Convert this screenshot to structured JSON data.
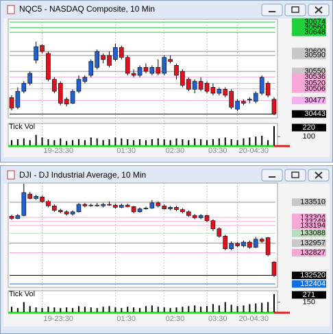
{
  "chart_data": [
    {
      "type": "candlestick",
      "title": "NQC5 - NASDAQ Composite, 10 Min",
      "up_color": "#2060d0",
      "down_color": "#e01020",
      "open": [
        30484,
        30460,
        30500,
        30520,
        30578,
        30615,
        30595,
        30530,
        30520,
        30480,
        30470,
        30500,
        30525,
        30540,
        30560,
        30590,
        30590,
        30580,
        30610,
        30585,
        30545,
        30540,
        30560,
        30545,
        30560,
        30545,
        30580,
        30565,
        30550,
        30530,
        30505,
        30525,
        30520,
        30510,
        30495,
        30505,
        30500,
        30455,
        30475,
        30480,
        30475,
        30495,
        30520,
        30480
      ],
      "close": [
        30458,
        30500,
        30520,
        30545,
        30612,
        30600,
        30530,
        30500,
        30470,
        30468,
        30500,
        30530,
        30535,
        30575,
        30600,
        30580,
        30565,
        30610,
        30585,
        30545,
        30540,
        30560,
        30550,
        30560,
        30545,
        30585,
        30575,
        30540,
        30515,
        30505,
        30525,
        30505,
        30500,
        30495,
        30505,
        30490,
        30460,
        30475,
        30470,
        30478,
        30495,
        30535,
        30490,
        30443
      ],
      "high": [
        30490,
        30510,
        30525,
        30550,
        30625,
        30618,
        30600,
        30535,
        30525,
        30485,
        30505,
        30540,
        30540,
        30580,
        30605,
        30595,
        30600,
        30620,
        30615,
        30590,
        30555,
        30565,
        30570,
        30565,
        30580,
        30590,
        30590,
        30570,
        30555,
        30535,
        30530,
        30535,
        30525,
        30520,
        30510,
        30510,
        30505,
        30480,
        30480,
        30485,
        30500,
        30540,
        30525,
        30485
      ],
      "low": [
        30452,
        30455,
        30495,
        30515,
        30570,
        30595,
        30525,
        30495,
        30465,
        30462,
        30468,
        30495,
        30520,
        30535,
        30555,
        30570,
        30560,
        30575,
        30580,
        30540,
        30535,
        30535,
        30545,
        30540,
        30540,
        30540,
        30570,
        30530,
        30510,
        30500,
        30495,
        30500,
        30495,
        30490,
        30490,
        30485,
        30455,
        30450,
        30465,
        30470,
        30470,
        30490,
        30485,
        30440
      ],
      "ylim": [
        30433,
        30681
      ],
      "yticks": [
        30674,
        30660,
        30648,
        30600,
        30590,
        30550,
        30536,
        30520,
        30506,
        30477,
        30443
      ],
      "ytick_colors": [
        "#1fd03a",
        "#1fd03a",
        "#1fd03a",
        "#c8c8c8",
        "#c8c8c8",
        "#c8c8c8",
        "#f8a8d8",
        "#f8a8d8",
        "#f8a8d8",
        "#f8b0f0",
        "#000000"
      ],
      "xticks": [
        {
          "value": 5,
          "label": "19-23:30"
        },
        {
          "value": 17,
          "label": "01:30"
        },
        {
          "value": 25,
          "label": "02:30"
        },
        {
          "value": 32,
          "label": "03:30"
        },
        {
          "value": 37,
          "label": "20-04:30"
        }
      ],
      "volume": {
        "label": "Tick Vol",
        "color": "#000000",
        "values": [
          60,
          70,
          80,
          60,
          120,
          90,
          70,
          60,
          80,
          50,
          60,
          70,
          60,
          90,
          80,
          60,
          70,
          90,
          80,
          70,
          60,
          70,
          60,
          70,
          80,
          70,
          60,
          80,
          70,
          60,
          80,
          70,
          60,
          70,
          80,
          90,
          70,
          60,
          80,
          90,
          100,
          110,
          60,
          220
        ],
        "ylim": [
          0,
          250
        ],
        "yticks": [
          100
        ]
      }
    },
    {
      "type": "candlestick",
      "title": "DJI - DJ Industrial Average, 10 Min",
      "up_color": "#2060d0",
      "down_color": "#e01020",
      "open": [
        133320,
        133290,
        133330,
        133620,
        133560,
        133580,
        133520,
        133460,
        133400,
        133380,
        133350,
        133380,
        133480,
        133460,
        133470,
        133460,
        133480,
        133470,
        133440,
        133470,
        133450,
        133380,
        133420,
        133430,
        133500,
        133460,
        133420,
        133440,
        133410,
        133380,
        133330,
        133300,
        133330,
        133260,
        133150,
        133050,
        132880,
        132950,
        132920,
        132970,
        132900,
        133010,
        133030,
        132700
      ],
      "close": [
        133290,
        133330,
        133640,
        133560,
        133590,
        133520,
        133460,
        133400,
        133380,
        133350,
        133380,
        133480,
        133460,
        133470,
        133460,
        133480,
        133470,
        133440,
        133470,
        133450,
        133380,
        133420,
        133430,
        133500,
        133460,
        133420,
        133440,
        133410,
        133380,
        133330,
        133300,
        133330,
        133260,
        133150,
        133050,
        132880,
        132950,
        132920,
        132970,
        132900,
        133010,
        132980,
        132800,
        132520
      ],
      "high": [
        133340,
        133350,
        133760,
        133650,
        133610,
        133600,
        133540,
        133480,
        133420,
        133400,
        133400,
        133500,
        133500,
        133490,
        133500,
        133500,
        133520,
        133490,
        133490,
        133490,
        133460,
        133440,
        133450,
        133540,
        133520,
        133480,
        133460,
        133460,
        133430,
        133400,
        133350,
        133350,
        133340,
        133280,
        133170,
        133070,
        132980,
        132970,
        132990,
        132990,
        133040,
        133030,
        133040,
        132710
      ],
      "low": [
        133270,
        133280,
        133320,
        133550,
        133540,
        133500,
        133440,
        133380,
        133360,
        133330,
        133330,
        133370,
        133440,
        133450,
        133450,
        133440,
        133460,
        133420,
        133430,
        133440,
        133360,
        133370,
        133410,
        133420,
        133440,
        133410,
        133400,
        133390,
        133360,
        133310,
        133280,
        133280,
        133240,
        133120,
        133030,
        132860,
        132860,
        132900,
        132900,
        132880,
        132890,
        132960,
        132780,
        132500
      ],
      "ylim": [
        132358,
        133768
      ],
      "yticks": [
        133510,
        133304,
        133249,
        133194,
        133088,
        132957,
        132827,
        132520,
        132404
      ],
      "ytick_colors": [
        "#c8c8c8",
        "#f8a8d8",
        "#f8a8d8",
        "#f8a8d8",
        "#b8e0b8",
        "#c8c8c8",
        "#f8a8d8",
        "#000000",
        "#1070e0"
      ],
      "xticks": [
        {
          "value": 5,
          "label": "19-23:30"
        },
        {
          "value": 17,
          "label": "01:30"
        },
        {
          "value": 25,
          "label": "02:30"
        },
        {
          "value": 32,
          "label": "03:30"
        },
        {
          "value": 37,
          "label": "20-04:30"
        }
      ],
      "volume": {
        "label": "Tick Vol",
        "color": "#000000",
        "values": [
          80,
          60,
          150,
          90,
          70,
          60,
          80,
          70,
          60,
          70,
          60,
          90,
          80,
          70,
          60,
          80,
          90,
          70,
          60,
          80,
          70,
          60,
          90,
          100,
          80,
          70,
          60,
          70,
          80,
          90,
          100,
          80,
          90,
          120,
          100,
          150,
          110,
          90,
          100,
          120,
          130,
          140,
          150,
          271
        ],
        "ylim": [
          0,
          320
        ],
        "yticks": [
          150
        ]
      }
    }
  ]
}
